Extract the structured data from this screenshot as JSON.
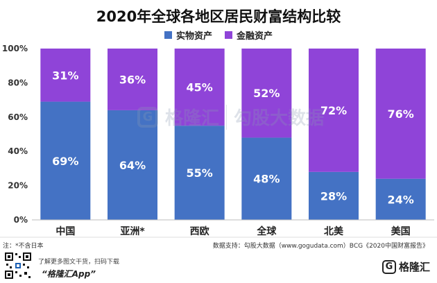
{
  "chart_data": {
    "type": "bar",
    "stacked": true,
    "title": "2020年全球各地区居民财富结构比较",
    "categories": [
      "中国",
      "亚洲*",
      "西欧",
      "全球",
      "北美",
      "美国"
    ],
    "series": [
      {
        "name": "实物资产",
        "values": [
          69,
          64,
          55,
          48,
          28,
          24
        ],
        "labels": [
          "69%",
          "64%",
          "55%",
          "48%",
          "28%",
          "24%"
        ],
        "color": "#4472c4"
      },
      {
        "name": "金融资产",
        "values": [
          31,
          36,
          45,
          52,
          72,
          76
        ],
        "labels": [
          "31%",
          "36%",
          "45%",
          "52%",
          "72%",
          "76%"
        ],
        "color": "#8f44d8"
      }
    ],
    "ylim": [
      0,
      100
    ],
    "yticks": [
      "0%",
      "20%",
      "40%",
      "60%",
      "80%",
      "100%"
    ],
    "grid": false,
    "legend_position": "top"
  },
  "note": "注：*不含日本",
  "source": "数据支持：勾股大数据（www.gogudata.com）BCG《2020中国财富报告》",
  "footer": {
    "tagline": "了解更多图文干货，扫码下载",
    "app_name": "“格隆汇App”",
    "brand": "格隆汇",
    "brand_mark": "G"
  },
  "watermark": {
    "mark": "G",
    "name": "格隆汇",
    "partner": "勾股大数据"
  },
  "colors": {
    "text": "#222222",
    "label": "#ffffff"
  }
}
